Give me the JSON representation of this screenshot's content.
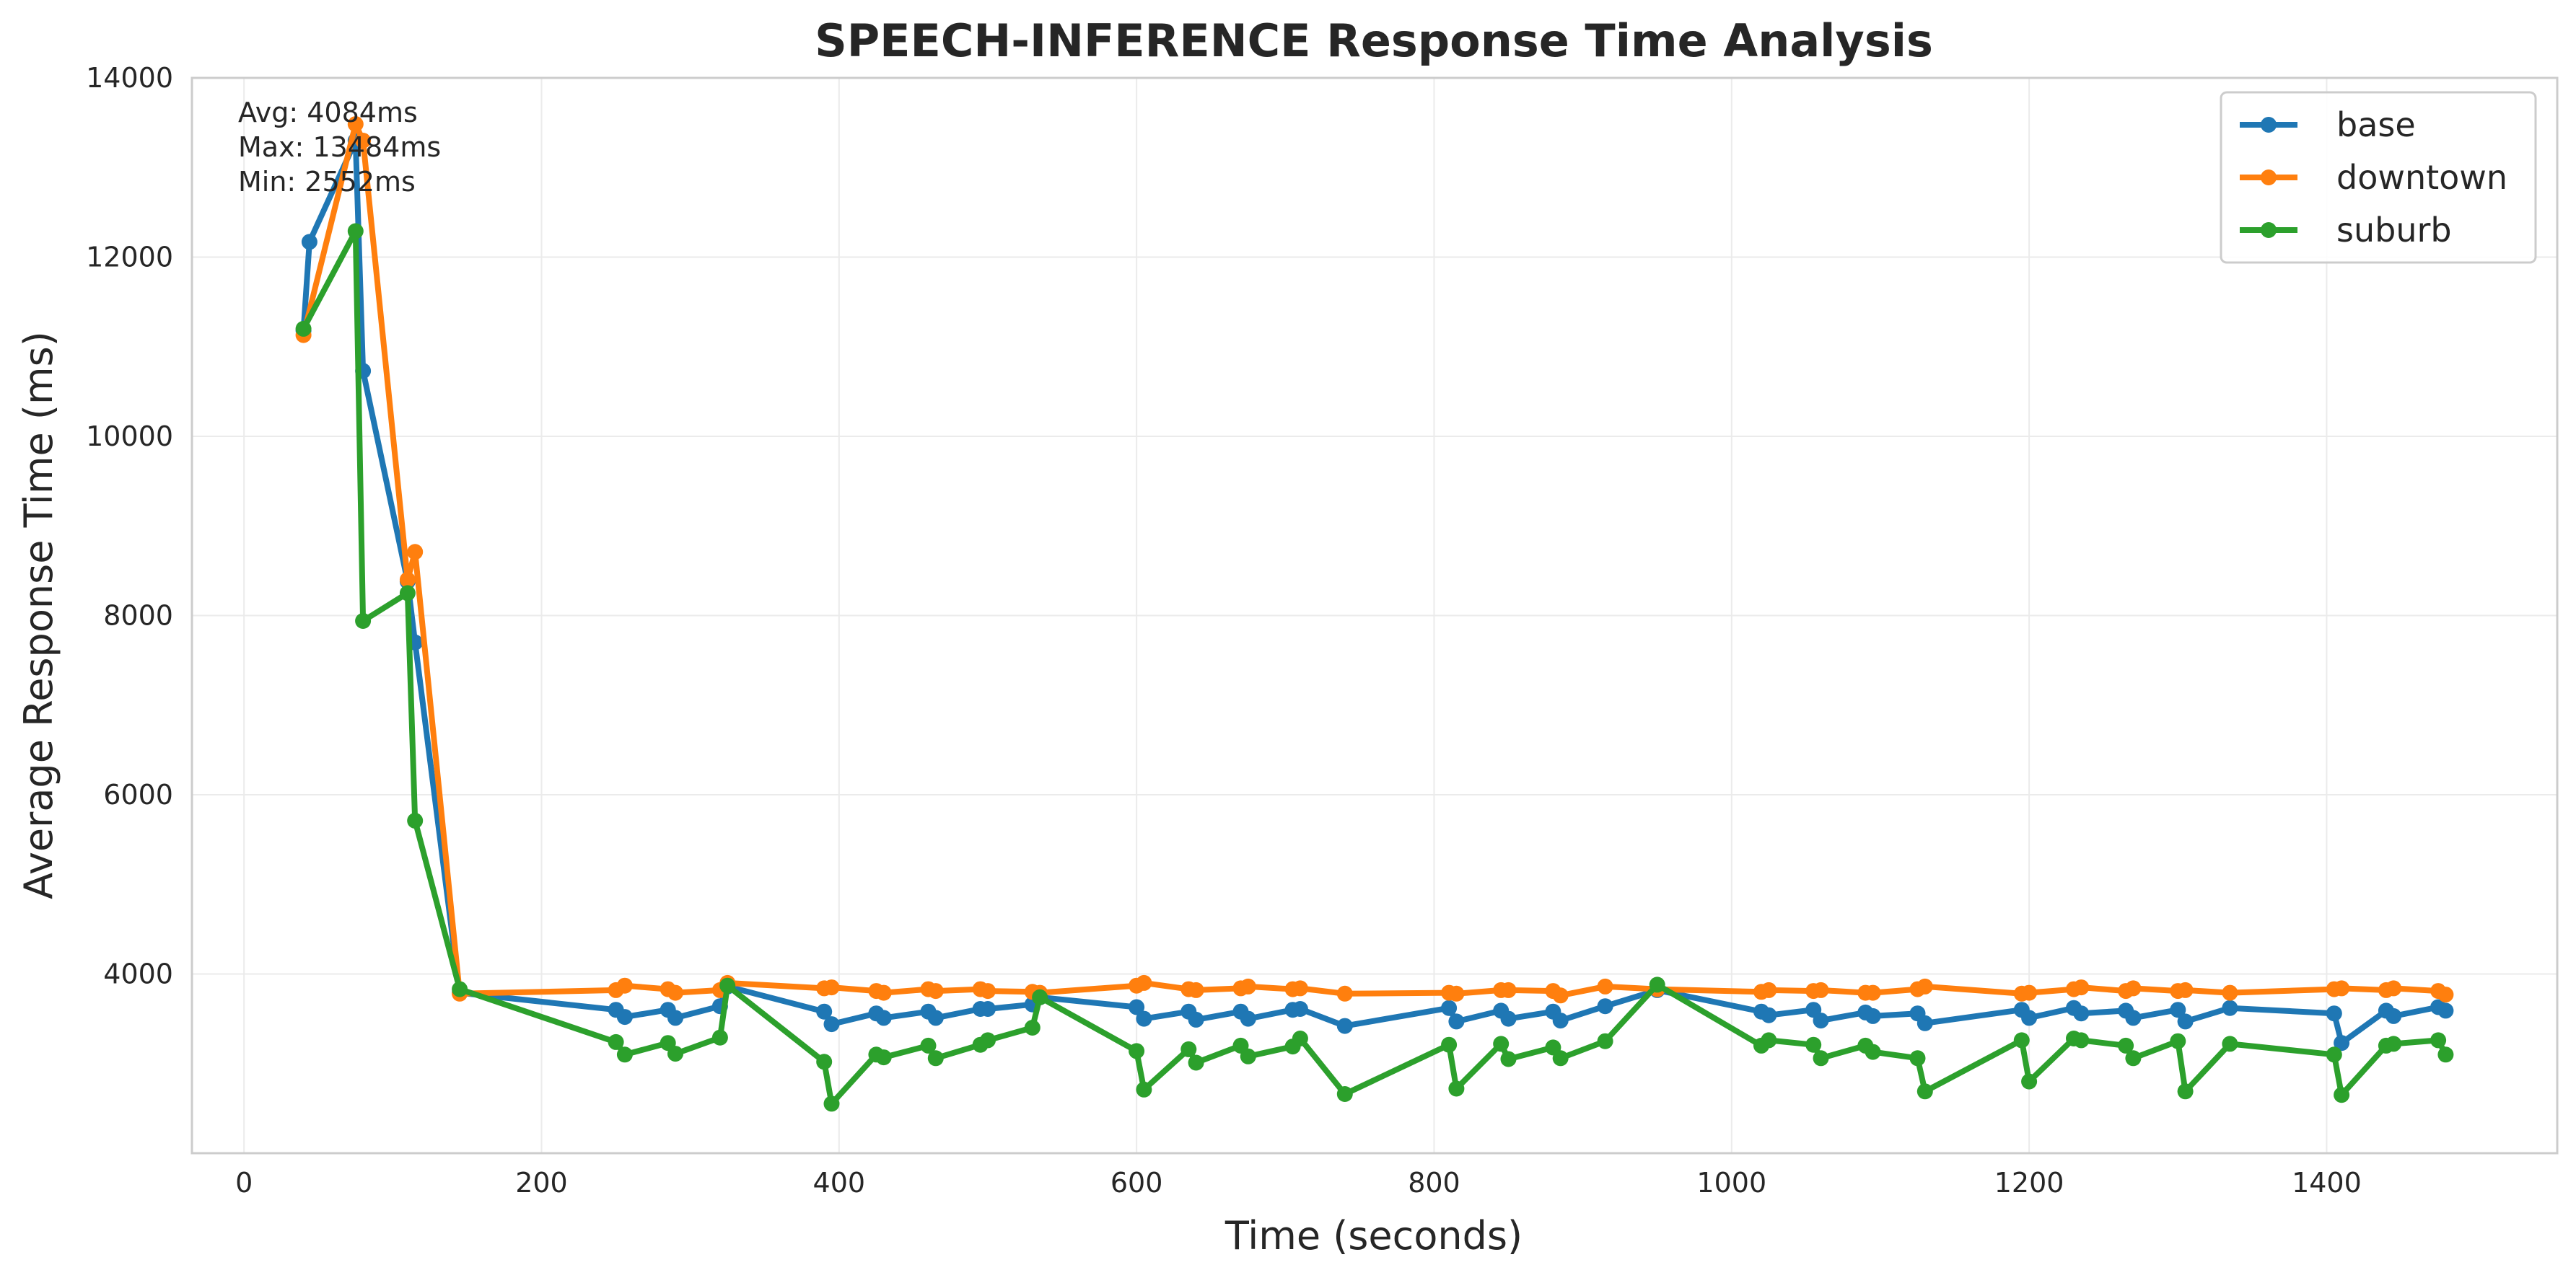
{
  "chart_data": {
    "type": "line",
    "title": "SPEECH-INFERENCE Response Time Analysis",
    "xlabel": "Time (seconds)",
    "ylabel": "Average Response Time (ms)",
    "xlim": [
      -35,
      1555
    ],
    "ylim": [
      2000,
      14000
    ],
    "xticks": [
      0,
      200,
      400,
      600,
      800,
      1000,
      1200,
      1400
    ],
    "yticks": [
      4000,
      6000,
      8000,
      10000,
      12000,
      14000
    ],
    "grid": true,
    "legend_position": "top-right",
    "stats": {
      "avg": "Avg: 4084ms",
      "max": "Max: 13484ms",
      "min": "Min: 2552ms"
    },
    "series": [
      {
        "name": "base",
        "color": "#1f77b4",
        "points": [
          [
            40,
            11180
          ],
          [
            44,
            12170
          ],
          [
            75,
            13300
          ],
          [
            80,
            10730
          ],
          [
            110,
            8380
          ],
          [
            115,
            7700
          ],
          [
            145,
            3790
          ],
          [
            250,
            3600
          ],
          [
            256,
            3520
          ],
          [
            285,
            3600
          ],
          [
            290,
            3510
          ],
          [
            320,
            3640
          ],
          [
            325,
            3860
          ],
          [
            390,
            3580
          ],
          [
            395,
            3440
          ],
          [
            425,
            3560
          ],
          [
            430,
            3510
          ],
          [
            460,
            3580
          ],
          [
            465,
            3510
          ],
          [
            495,
            3610
          ],
          [
            500,
            3610
          ],
          [
            530,
            3660
          ],
          [
            535,
            3740
          ],
          [
            600,
            3630
          ],
          [
            605,
            3500
          ],
          [
            635,
            3580
          ],
          [
            640,
            3490
          ],
          [
            670,
            3580
          ],
          [
            675,
            3500
          ],
          [
            705,
            3600
          ],
          [
            710,
            3610
          ],
          [
            740,
            3420
          ],
          [
            810,
            3620
          ],
          [
            815,
            3470
          ],
          [
            845,
            3590
          ],
          [
            850,
            3500
          ],
          [
            880,
            3580
          ],
          [
            885,
            3480
          ],
          [
            915,
            3640
          ],
          [
            950,
            3820
          ],
          [
            1020,
            3580
          ],
          [
            1025,
            3540
          ],
          [
            1055,
            3600
          ],
          [
            1060,
            3480
          ],
          [
            1090,
            3570
          ],
          [
            1095,
            3530
          ],
          [
            1125,
            3560
          ],
          [
            1130,
            3450
          ],
          [
            1195,
            3600
          ],
          [
            1200,
            3510
          ],
          [
            1230,
            3620
          ],
          [
            1235,
            3560
          ],
          [
            1265,
            3590
          ],
          [
            1270,
            3510
          ],
          [
            1300,
            3600
          ],
          [
            1305,
            3470
          ],
          [
            1335,
            3620
          ],
          [
            1405,
            3560
          ],
          [
            1410,
            3230
          ],
          [
            1440,
            3590
          ],
          [
            1445,
            3530
          ],
          [
            1475,
            3630
          ],
          [
            1480,
            3590
          ]
        ]
      },
      {
        "name": "downtown",
        "color": "#ff7f0e",
        "points": [
          [
            40,
            11130
          ],
          [
            75,
            13484
          ],
          [
            80,
            13300
          ],
          [
            110,
            8400
          ],
          [
            115,
            8710
          ],
          [
            145,
            3780
          ],
          [
            250,
            3820
          ],
          [
            256,
            3870
          ],
          [
            285,
            3830
          ],
          [
            290,
            3790
          ],
          [
            320,
            3820
          ],
          [
            325,
            3900
          ],
          [
            390,
            3840
          ],
          [
            395,
            3850
          ],
          [
            425,
            3810
          ],
          [
            430,
            3790
          ],
          [
            460,
            3830
          ],
          [
            465,
            3810
          ],
          [
            495,
            3830
          ],
          [
            500,
            3810
          ],
          [
            530,
            3800
          ],
          [
            535,
            3790
          ],
          [
            600,
            3870
          ],
          [
            605,
            3900
          ],
          [
            635,
            3830
          ],
          [
            640,
            3820
          ],
          [
            670,
            3840
          ],
          [
            675,
            3860
          ],
          [
            705,
            3830
          ],
          [
            710,
            3840
          ],
          [
            740,
            3780
          ],
          [
            810,
            3790
          ],
          [
            815,
            3780
          ],
          [
            845,
            3820
          ],
          [
            850,
            3820
          ],
          [
            880,
            3810
          ],
          [
            885,
            3760
          ],
          [
            915,
            3860
          ],
          [
            950,
            3830
          ],
          [
            1020,
            3800
          ],
          [
            1025,
            3820
          ],
          [
            1055,
            3810
          ],
          [
            1060,
            3820
          ],
          [
            1090,
            3790
          ],
          [
            1095,
            3790
          ],
          [
            1125,
            3830
          ],
          [
            1130,
            3860
          ],
          [
            1195,
            3780
          ],
          [
            1200,
            3790
          ],
          [
            1230,
            3830
          ],
          [
            1235,
            3850
          ],
          [
            1265,
            3810
          ],
          [
            1270,
            3840
          ],
          [
            1300,
            3810
          ],
          [
            1305,
            3820
          ],
          [
            1335,
            3790
          ],
          [
            1405,
            3830
          ],
          [
            1410,
            3840
          ],
          [
            1440,
            3820
          ],
          [
            1445,
            3840
          ],
          [
            1475,
            3810
          ],
          [
            1480,
            3770
          ]
        ]
      },
      {
        "name": "suburb",
        "color": "#2ca02c",
        "points": [
          [
            40,
            11200
          ],
          [
            75,
            12290
          ],
          [
            80,
            7940
          ],
          [
            110,
            8250
          ],
          [
            115,
            5710
          ],
          [
            145,
            3830
          ],
          [
            250,
            3240
          ],
          [
            256,
            3100
          ],
          [
            285,
            3230
          ],
          [
            290,
            3110
          ],
          [
            320,
            3290
          ],
          [
            325,
            3870
          ],
          [
            390,
            3020
          ],
          [
            395,
            2552
          ],
          [
            425,
            3100
          ],
          [
            430,
            3070
          ],
          [
            460,
            3200
          ],
          [
            465,
            3060
          ],
          [
            495,
            3210
          ],
          [
            500,
            3260
          ],
          [
            530,
            3400
          ],
          [
            535,
            3740
          ],
          [
            600,
            3140
          ],
          [
            605,
            2710
          ],
          [
            635,
            3160
          ],
          [
            640,
            3010
          ],
          [
            670,
            3200
          ],
          [
            675,
            3080
          ],
          [
            705,
            3190
          ],
          [
            710,
            3280
          ],
          [
            740,
            2660
          ],
          [
            810,
            3210
          ],
          [
            815,
            2720
          ],
          [
            845,
            3220
          ],
          [
            850,
            3050
          ],
          [
            880,
            3180
          ],
          [
            885,
            3060
          ],
          [
            915,
            3250
          ],
          [
            950,
            3880
          ],
          [
            1020,
            3200
          ],
          [
            1025,
            3260
          ],
          [
            1055,
            3210
          ],
          [
            1060,
            3060
          ],
          [
            1090,
            3200
          ],
          [
            1095,
            3130
          ],
          [
            1125,
            3060
          ],
          [
            1130,
            2690
          ],
          [
            1195,
            3260
          ],
          [
            1200,
            2800
          ],
          [
            1230,
            3280
          ],
          [
            1235,
            3260
          ],
          [
            1265,
            3200
          ],
          [
            1270,
            3060
          ],
          [
            1300,
            3250
          ],
          [
            1305,
            2690
          ],
          [
            1335,
            3220
          ],
          [
            1405,
            3100
          ],
          [
            1410,
            2650
          ],
          [
            1440,
            3200
          ],
          [
            1445,
            3220
          ],
          [
            1475,
            3260
          ],
          [
            1480,
            3100
          ]
        ]
      }
    ]
  }
}
